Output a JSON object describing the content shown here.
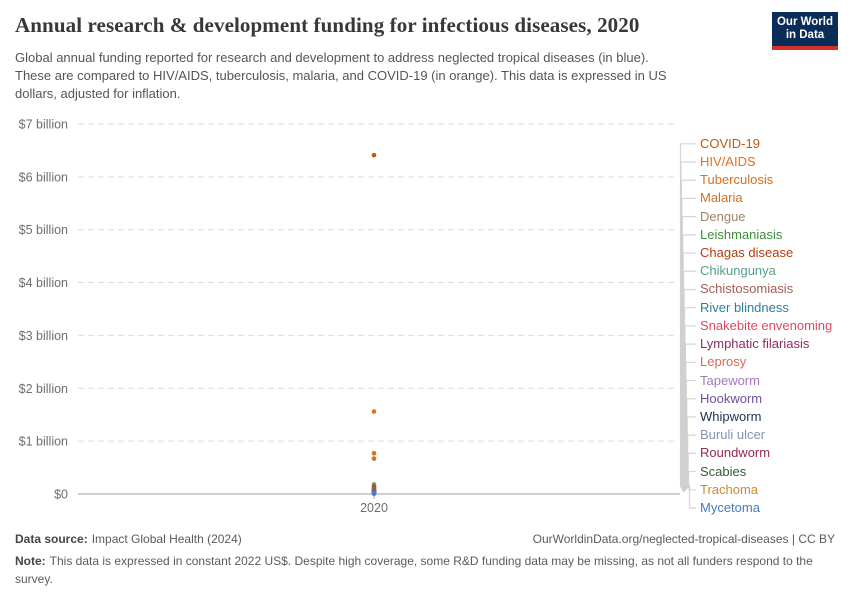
{
  "header": {
    "title": "Annual research & development funding for infectious diseases, 2020",
    "subtitle_lines": [
      "Global annual funding reported for research and development to address neglected tropical diseases (in blue).",
      "These are compared to HIV/AIDS, tuberculosis, malaria, and COVID-19 (in orange). This data is expressed in US",
      "dollars, adjusted for inflation."
    ],
    "logo": {
      "line1": "Our World",
      "line2": "in Data",
      "bg_color": "#0a2c58",
      "accent_color": "#d5312a"
    }
  },
  "chart_data": {
    "type": "scatter",
    "year": 2020,
    "x_tick_label": "2020",
    "unit": "US$ billion, constant 2022 US$",
    "y_axis": {
      "range": [
        0,
        7
      ],
      "grid": "dashed horizontal",
      "ticks": [
        {
          "label": "$7 billion",
          "value": 7
        },
        {
          "label": "$6 billion",
          "value": 6
        },
        {
          "label": "$5 billion",
          "value": 5
        },
        {
          "label": "$4 billion",
          "value": 4
        },
        {
          "label": "$3 billion",
          "value": 3
        },
        {
          "label": "$2 billion",
          "value": 2
        },
        {
          "label": "$1 billion",
          "value": 1
        },
        {
          "label": "$0",
          "value": 0
        }
      ]
    },
    "legend_position": "right",
    "series": [
      {
        "name": "COVID-19",
        "color": "#bc5a14",
        "value_billion": 6.41
      },
      {
        "name": "HIV/AIDS",
        "color": "#e3701d",
        "value_billion": 1.56
      },
      {
        "name": "Tuberculosis",
        "color": "#d4701f",
        "value_billion": 0.77
      },
      {
        "name": "Malaria",
        "color": "#ce7229",
        "value_billion": 0.67
      },
      {
        "name": "Dengue",
        "color": "#9d8666",
        "value_billion": 0.18
      },
      {
        "name": "Leishmaniasis",
        "color": "#3e8e3e",
        "value_billion": 0.14
      },
      {
        "name": "Chagas disease",
        "color": "#b23c11",
        "value_billion": 0.12
      },
      {
        "name": "Chikungunya",
        "color": "#56a08a",
        "value_billion": 0.1
      },
      {
        "name": "Schistosomiasis",
        "color": "#a65c52",
        "value_billion": 0.09
      },
      {
        "name": "River blindness",
        "color": "#2d7e9c",
        "value_billion": 0.08
      },
      {
        "name": "Snakebite envenoming",
        "color": "#dd4a5f",
        "value_billion": 0.07
      },
      {
        "name": "Lymphatic filariasis",
        "color": "#8c2d62",
        "value_billion": 0.06
      },
      {
        "name": "Leprosy",
        "color": "#d36b5a",
        "value_billion": 0.05
      },
      {
        "name": "Tapeworm",
        "color": "#a379bf",
        "value_billion": 0.045
      },
      {
        "name": "Hookworm",
        "color": "#6e4f9e",
        "value_billion": 0.04
      },
      {
        "name": "Whipworm",
        "color": "#1f3054",
        "value_billion": 0.035
      },
      {
        "name": "Buruli ulcer",
        "color": "#8295b2",
        "value_billion": 0.03
      },
      {
        "name": "Roundworm",
        "color": "#932c4a",
        "value_billion": 0.025
      },
      {
        "name": "Scabies",
        "color": "#2f5d36",
        "value_billion": 0.02
      },
      {
        "name": "Trachoma",
        "color": "#ca8a35",
        "value_billion": 0.015
      },
      {
        "name": "Mycetoma",
        "color": "#4679c6",
        "value_billion": 0.005
      }
    ]
  },
  "footer": {
    "source_label": "Data source:",
    "source_value": "Impact Global Health (2024)",
    "url": "OurWorldinData.org/neglected-tropical-diseases | CC BY",
    "note_label": "Note:",
    "note_text": "This data is expressed in constant 2022 US$. Despite high coverage, some R&D funding data may be missing, as not all funders respond to the survey."
  }
}
